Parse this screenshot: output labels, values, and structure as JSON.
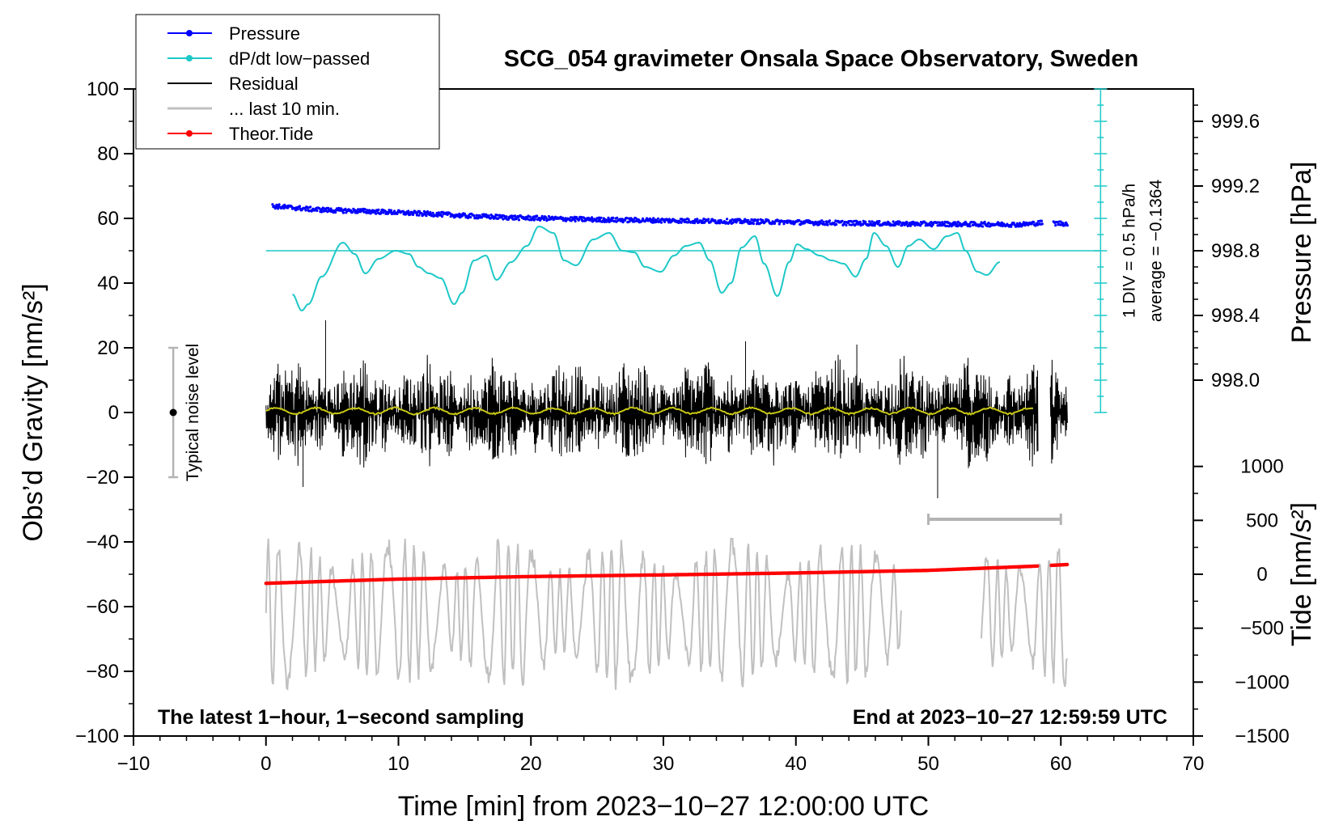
{
  "chart_data": {
    "type": "line",
    "title": "SCG_054 gravimeter Onsala Space Observatory, Sweden",
    "xlabel": "Time [min] from 2023−10−27 12:00:00 UTC",
    "ylabel_left": "Obs’d Gravity [nm/s²]",
    "ylabel_right_top": "Pressure [hPa]",
    "ylabel_right_bottom": "Tide [nm/s²]",
    "xlim": [
      -10,
      70
    ],
    "ylim": [
      -100,
      100
    ],
    "x_ticks": [
      -10,
      0,
      10,
      20,
      30,
      40,
      50,
      60,
      70
    ],
    "x_tick_labels": [
      "−10",
      "0",
      "10",
      "20",
      "30",
      "40",
      "50",
      "60",
      "70"
    ],
    "y_ticks": [
      -100,
      -80,
      -60,
      -40,
      -20,
      0,
      20,
      40,
      60,
      80,
      100
    ],
    "y_tick_labels": [
      "−100",
      "−80",
      "−60",
      "−40",
      "−20",
      "0",
      "20",
      "40",
      "60",
      "80",
      "100"
    ],
    "pressure_axis": {
      "ticks": [
        998.0,
        998.4,
        998.8,
        999.2,
        999.6
      ],
      "tick_labels": [
        "998.0",
        "998.4",
        "998.8",
        "999.2",
        "999.6"
      ],
      "mapping_gravity_per_hpa": 50,
      "ref_hpa": 998.8,
      "ref_gravity": 50
    },
    "tide_axis": {
      "ticks": [
        -1500,
        -1000,
        -500,
        0,
        500,
        1000
      ],
      "tick_labels": [
        "−1500",
        "−1000",
        "−500",
        "0",
        "500",
        "1000"
      ],
      "mapping_gravity_per_unit": 0.03333,
      "ref_gravity": -50
    },
    "legend": [
      {
        "label": "Pressure",
        "color": "#0000ff",
        "style": "line-dot"
      },
      {
        "label": "dP/dt low−passed",
        "color": "#1ec8c8",
        "style": "line-dot"
      },
      {
        "label": "Residual",
        "color": "#000000",
        "style": "line"
      },
      {
        "label": "... last 10 min.",
        "color": "#c0c0c0",
        "style": "line"
      },
      {
        "label": "Theor.Tide",
        "color": "#ff0000",
        "style": "line-dot"
      }
    ],
    "series": [
      {
        "name": "Pressure",
        "color": "#0000ff",
        "x": [
          0.5,
          2,
          3.5,
          5,
          7,
          9,
          11,
          13,
          15,
          17,
          19,
          21,
          23,
          25,
          27,
          29,
          31,
          33,
          35,
          37,
          39,
          41,
          43,
          45,
          47,
          49,
          51,
          53,
          55,
          57,
          58.5,
          59.5,
          60.5
        ],
        "y": [
          63.8,
          63.3,
          62.8,
          62.5,
          62.3,
          62.0,
          61.6,
          61.3,
          60.8,
          60.5,
          60.2,
          60.0,
          59.8,
          59.6,
          59.5,
          59.4,
          59.3,
          59.2,
          59.1,
          59.0,
          58.9,
          58.7,
          58.6,
          58.5,
          58.4,
          58.3,
          58.3,
          58.2,
          58.2,
          58.1,
          58.6,
          58.5,
          58.4
        ]
      },
      {
        "name": "dP/dt low−passed",
        "color": "#1ec8c8",
        "x": [
          2,
          2.7,
          3.2,
          4.2,
          5.8,
          6.7,
          7.5,
          8.5,
          9.8,
          10.8,
          11.5,
          12.3,
          13.2,
          14.2,
          14.8,
          15.7,
          16.6,
          17.4,
          18.5,
          19.7,
          20.6,
          21.7,
          22.5,
          23.4,
          24.7,
          25.9,
          26.9,
          27.8,
          28.6,
          29.8,
          30.8,
          31.7,
          32.7,
          33.5,
          34.4,
          35.1,
          35.9,
          36.9,
          37.6,
          38.6,
          39.5,
          40.1,
          40.8,
          41.8,
          42.7,
          43.6,
          44.5,
          45.3,
          45.9,
          46.8,
          47.7,
          48.5,
          49.3,
          50.4,
          51.4,
          52.2,
          52.8,
          53.7,
          54.4,
          55.4
        ],
        "y": [
          36.5,
          31.5,
          33.5,
          42,
          52.5,
          49,
          43,
          47.5,
          50,
          49,
          45,
          43,
          41.5,
          33.5,
          37,
          47,
          48.5,
          41,
          46.5,
          51.5,
          57.5,
          55.5,
          47,
          45.5,
          53.5,
          55.5,
          50,
          49.5,
          45,
          43.5,
          48.5,
          51.5,
          52.5,
          47,
          37,
          40,
          51,
          54.5,
          46,
          36,
          46.5,
          52,
          50.5,
          48.5,
          47,
          46,
          42,
          47.5,
          55.5,
          51.5,
          45,
          51.5,
          53.5,
          50.5,
          54.5,
          55.5,
          50,
          43.5,
          42.5,
          46.5
        ]
      },
      {
        "name": "Residual",
        "color": "#000000",
        "x_range": [
          0,
          60.5
        ],
        "gap": [
          58.3,
          59.2
        ],
        "envelope_nm_s2": 14,
        "peak_min": -26.5,
        "peak_max": 28.5
      },
      {
        "name": "Residual low-pass",
        "color": "#c8c814",
        "x_range": [
          0,
          58
        ],
        "y_level": 0.5
      },
      {
        "name": "... last 10 min.",
        "color": "#c0c0c0",
        "x_range": [
          0,
          48
        ],
        "second_x_range": [
          54,
          60.5
        ],
        "y_center": -62,
        "y_min": -88,
        "y_max": -39
      },
      {
        "name": "Theor.Tide",
        "color": "#ff0000",
        "x": [
          0,
          10,
          20,
          30,
          40,
          50,
          58,
          59.5,
          60.5
        ],
        "y": [
          -52.8,
          -51.5,
          -50.7,
          -50.2,
          -49.6,
          -48.8,
          -47.5,
          -47.2,
          -47.0
        ],
        "gap": [
          58.3,
          59.2
        ]
      }
    ],
    "annotations": {
      "noise_label": "Typical noise level",
      "noise_bar": {
        "x": -7,
        "y_center": 0,
        "y_min": -20,
        "y_max": 20
      },
      "window_bar": {
        "x_start": 50,
        "x_end": 60,
        "y": -33
      },
      "div_scale": "1 DIV = 0.5 hPa/h",
      "average": "average = −0.1364",
      "dpdt_zero_line": 50,
      "dpdt_axis_x": 63,
      "dpdt_axis_y_range": [
        0,
        100
      ],
      "sampling_note": "The latest 1−hour, 1−second sampling",
      "end_note": "End at 2023−10−27 12:59:59 UTC"
    }
  }
}
